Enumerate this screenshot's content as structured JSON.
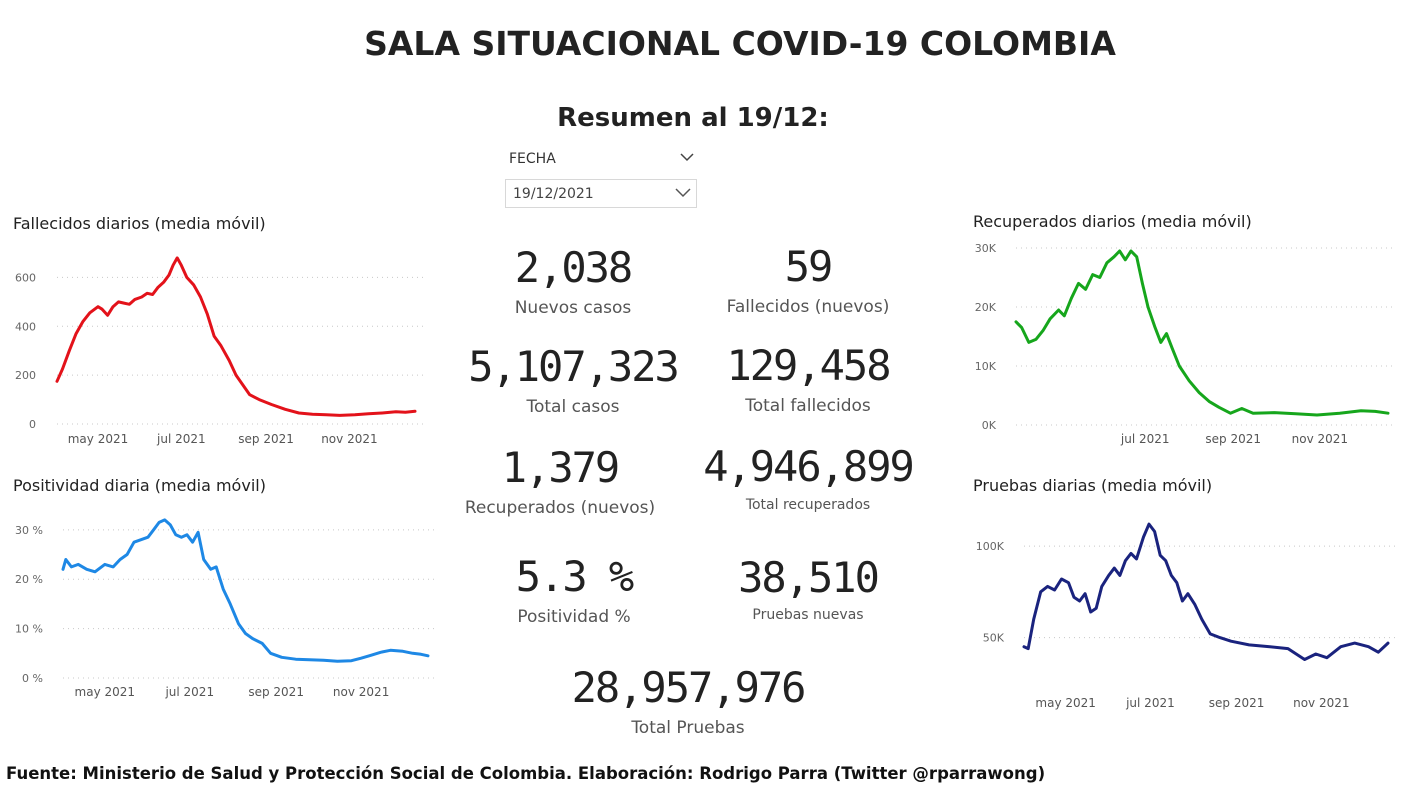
{
  "title": "SALA SITUACIONAL COVID-19 COLOMBIA",
  "subtitle": "Resumen al 19/12:",
  "filter": {
    "label": "FECHA",
    "value": "19/12/2021"
  },
  "kpis": {
    "nuevos_casos": {
      "value": "2,038",
      "label": "Nuevos casos"
    },
    "fallecidos_nuevos": {
      "value": "59",
      "label": "Fallecidos (nuevos)"
    },
    "total_casos": {
      "value": "5,107,323",
      "label": "Total casos"
    },
    "total_fallecidos": {
      "value": "129,458",
      "label": "Total fallecidos"
    },
    "recuperados_nuevos": {
      "value": "1,379",
      "label": "Recuperados (nuevos)"
    },
    "total_recuperados": {
      "value": "4,946,899",
      "label": "Total recuperados"
    },
    "positividad": {
      "value": "5.3 %",
      "label": "Positividad %"
    },
    "pruebas_nuevas": {
      "value": "38,510",
      "label": "Pruebas nuevas"
    },
    "total_pruebas": {
      "value": "28,957,976",
      "label": "Total Pruebas"
    }
  },
  "footer": "Fuente: Ministerio de Salud y Protección Social de Colombia. Elaboración: Rodrigo Parra (Twitter @rparrawong)",
  "chart_data": [
    {
      "id": "fallecidos",
      "type": "line",
      "title": "Fallecidos diarios (media móvil)",
      "color": "#e3121a",
      "xrange": [
        "2021-04-01",
        "2021-12-19"
      ],
      "ylim": [
        0,
        700
      ],
      "yticks": [
        {
          "v": 0,
          "label": "0"
        },
        {
          "v": 200,
          "label": "200"
        },
        {
          "v": 400,
          "label": "400"
        },
        {
          "v": 600,
          "label": "600"
        }
      ],
      "xticks": [
        {
          "d": "2021-05-01",
          "label": "may 2021"
        },
        {
          "d": "2021-07-01",
          "label": "jul 2021"
        },
        {
          "d": "2021-09-01",
          "label": "sep 2021"
        },
        {
          "d": "2021-11-01",
          "label": "nov 2021"
        }
      ],
      "grid": true,
      "series": [
        {
          "points": [
            [
              "2021-04-01",
              175
            ],
            [
              "2021-04-05",
              225
            ],
            [
              "2021-04-10",
              300
            ],
            [
              "2021-04-15",
              370
            ],
            [
              "2021-04-20",
              420
            ],
            [
              "2021-04-25",
              455
            ],
            [
              "2021-05-01",
              480
            ],
            [
              "2021-05-04",
              470
            ],
            [
              "2021-05-08",
              445
            ],
            [
              "2021-05-12",
              480
            ],
            [
              "2021-05-16",
              500
            ],
            [
              "2021-05-20",
              495
            ],
            [
              "2021-05-24",
              490
            ],
            [
              "2021-05-28",
              510
            ],
            [
              "2021-06-02",
              520
            ],
            [
              "2021-06-06",
              535
            ],
            [
              "2021-06-10",
              530
            ],
            [
              "2021-06-14",
              560
            ],
            [
              "2021-06-18",
              580
            ],
            [
              "2021-06-22",
              610
            ],
            [
              "2021-06-25",
              650
            ],
            [
              "2021-06-28",
              680
            ],
            [
              "2021-07-01",
              650
            ],
            [
              "2021-07-05",
              600
            ],
            [
              "2021-07-10",
              570
            ],
            [
              "2021-07-15",
              520
            ],
            [
              "2021-07-20",
              450
            ],
            [
              "2021-07-25",
              360
            ],
            [
              "2021-07-30",
              320
            ],
            [
              "2021-08-05",
              260
            ],
            [
              "2021-08-10",
              200
            ],
            [
              "2021-08-15",
              160
            ],
            [
              "2021-08-20",
              120
            ],
            [
              "2021-08-27",
              100
            ],
            [
              "2021-09-05",
              80
            ],
            [
              "2021-09-15",
              60
            ],
            [
              "2021-09-25",
              45
            ],
            [
              "2021-10-05",
              40
            ],
            [
              "2021-10-15",
              38
            ],
            [
              "2021-10-25",
              35
            ],
            [
              "2021-11-05",
              38
            ],
            [
              "2021-11-15",
              42
            ],
            [
              "2021-11-25",
              45
            ],
            [
              "2021-12-05",
              50
            ],
            [
              "2021-12-12",
              48
            ],
            [
              "2021-12-19",
              52
            ]
          ]
        }
      ]
    },
    {
      "id": "positividad",
      "type": "line",
      "title": "Positividad diaria (media móvil)",
      "color": "#1e88e5",
      "xrange": [
        "2021-04-01",
        "2021-12-19"
      ],
      "ylim": [
        0,
        33
      ],
      "yticks": [
        {
          "v": 0,
          "label": "0 %"
        },
        {
          "v": 10,
          "label": "10 %"
        },
        {
          "v": 20,
          "label": "20 %"
        },
        {
          "v": 30,
          "label": "30 %"
        }
      ],
      "xticks": [
        {
          "d": "2021-05-01",
          "label": "may 2021"
        },
        {
          "d": "2021-07-01",
          "label": "jul 2021"
        },
        {
          "d": "2021-09-01",
          "label": "sep 2021"
        },
        {
          "d": "2021-11-01",
          "label": "nov 2021"
        }
      ],
      "grid": true,
      "series": [
        {
          "points": [
            [
              "2021-04-01",
              22
            ],
            [
              "2021-04-03",
              24
            ],
            [
              "2021-04-07",
              22.5
            ],
            [
              "2021-04-12",
              23
            ],
            [
              "2021-04-18",
              22
            ],
            [
              "2021-04-24",
              21.5
            ],
            [
              "2021-05-01",
              23
            ],
            [
              "2021-05-07",
              22.5
            ],
            [
              "2021-05-12",
              24
            ],
            [
              "2021-05-17",
              25
            ],
            [
              "2021-05-22",
              27.5
            ],
            [
              "2021-05-27",
              28
            ],
            [
              "2021-06-01",
              28.5
            ],
            [
              "2021-06-05",
              30
            ],
            [
              "2021-06-09",
              31.5
            ],
            [
              "2021-06-13",
              32
            ],
            [
              "2021-06-17",
              31
            ],
            [
              "2021-06-21",
              29
            ],
            [
              "2021-06-25",
              28.5
            ],
            [
              "2021-06-29",
              29
            ],
            [
              "2021-07-03",
              27.5
            ],
            [
              "2021-07-07",
              29.5
            ],
            [
              "2021-07-11",
              24
            ],
            [
              "2021-07-16",
              22
            ],
            [
              "2021-07-20",
              22.5
            ],
            [
              "2021-07-25",
              18
            ],
            [
              "2021-07-30",
              15
            ],
            [
              "2021-08-05",
              11
            ],
            [
              "2021-08-10",
              9
            ],
            [
              "2021-08-15",
              8
            ],
            [
              "2021-08-22",
              7
            ],
            [
              "2021-08-28",
              5
            ],
            [
              "2021-09-05",
              4.2
            ],
            [
              "2021-09-15",
              3.8
            ],
            [
              "2021-09-25",
              3.7
            ],
            [
              "2021-10-05",
              3.6
            ],
            [
              "2021-10-15",
              3.4
            ],
            [
              "2021-10-25",
              3.5
            ],
            [
              "2021-11-01",
              4
            ],
            [
              "2021-11-08",
              4.6
            ],
            [
              "2021-11-15",
              5.2
            ],
            [
              "2021-11-22",
              5.6
            ],
            [
              "2021-12-01",
              5.4
            ],
            [
              "2021-12-08",
              5.0
            ],
            [
              "2021-12-14",
              4.8
            ],
            [
              "2021-12-19",
              4.5
            ]
          ]
        }
      ]
    },
    {
      "id": "recuperados",
      "type": "line",
      "title": "Recuperados diarios (media móvil)",
      "color": "#16a61c",
      "xrange": [
        "2021-04-01",
        "2021-12-19"
      ],
      "ylim": [
        0,
        30000
      ],
      "yticks": [
        {
          "v": 0,
          "label": "0K"
        },
        {
          "v": 10000,
          "label": "10K"
        },
        {
          "v": 20000,
          "label": "20K"
        },
        {
          "v": 30000,
          "label": "30K"
        }
      ],
      "xticks": [
        {
          "d": "2021-07-01",
          "label": "jul 2021"
        },
        {
          "d": "2021-09-01",
          "label": "sep 2021"
        },
        {
          "d": "2021-11-01",
          "label": "nov 2021"
        }
      ],
      "grid": true,
      "series": [
        {
          "points": [
            [
              "2021-04-01",
              17500
            ],
            [
              "2021-04-05",
              16500
            ],
            [
              "2021-04-10",
              14000
            ],
            [
              "2021-04-15",
              14500
            ],
            [
              "2021-04-20",
              16000
            ],
            [
              "2021-04-25",
              18000
            ],
            [
              "2021-05-01",
              19500
            ],
            [
              "2021-05-05",
              18500
            ],
            [
              "2021-05-10",
              21500
            ],
            [
              "2021-05-15",
              24000
            ],
            [
              "2021-05-20",
              23000
            ],
            [
              "2021-05-25",
              25500
            ],
            [
              "2021-05-30",
              25000
            ],
            [
              "2021-06-04",
              27500
            ],
            [
              "2021-06-09",
              28500
            ],
            [
              "2021-06-13",
              29500
            ],
            [
              "2021-06-17",
              28000
            ],
            [
              "2021-06-21",
              29500
            ],
            [
              "2021-06-25",
              28500
            ],
            [
              "2021-06-29",
              24000
            ],
            [
              "2021-07-03",
              20000
            ],
            [
              "2021-07-08",
              16500
            ],
            [
              "2021-07-12",
              14000
            ],
            [
              "2021-07-16",
              15500
            ],
            [
              "2021-07-20",
              13000
            ],
            [
              "2021-07-25",
              10000
            ],
            [
              "2021-08-01",
              7500
            ],
            [
              "2021-08-08",
              5500
            ],
            [
              "2021-08-15",
              4000
            ],
            [
              "2021-08-22",
              3000
            ],
            [
              "2021-08-30",
              2000
            ],
            [
              "2021-09-07",
              2800
            ],
            [
              "2021-09-15",
              2000
            ],
            [
              "2021-09-30",
              2100
            ],
            [
              "2021-10-15",
              1900
            ],
            [
              "2021-10-30",
              1700
            ],
            [
              "2021-11-15",
              2000
            ],
            [
              "2021-11-30",
              2400
            ],
            [
              "2021-12-10",
              2300
            ],
            [
              "2021-12-19",
              2000
            ]
          ]
        }
      ]
    },
    {
      "id": "pruebas",
      "type": "line",
      "title": "Pruebas diarias (media móvil)",
      "color": "#1a237e",
      "xrange": [
        "2021-04-01",
        "2021-12-19"
      ],
      "ylim": [
        30000,
        115000
      ],
      "yticks": [
        {
          "v": 50000,
          "label": "50K"
        },
        {
          "v": 100000,
          "label": "100K"
        }
      ],
      "xticks": [
        {
          "d": "2021-05-01",
          "label": "may 2021"
        },
        {
          "d": "2021-07-01",
          "label": "jul 2021"
        },
        {
          "d": "2021-09-01",
          "label": "sep 2021"
        },
        {
          "d": "2021-11-01",
          "label": "nov 2021"
        }
      ],
      "grid": true,
      "series": [
        {
          "points": [
            [
              "2021-04-01",
              45000
            ],
            [
              "2021-04-04",
              44000
            ],
            [
              "2021-04-08",
              60000
            ],
            [
              "2021-04-13",
              75000
            ],
            [
              "2021-04-18",
              78000
            ],
            [
              "2021-04-23",
              76000
            ],
            [
              "2021-04-28",
              82000
            ],
            [
              "2021-05-03",
              80000
            ],
            [
              "2021-05-07",
              72000
            ],
            [
              "2021-05-11",
              70000
            ],
            [
              "2021-05-15",
              74000
            ],
            [
              "2021-05-19",
              64000
            ],
            [
              "2021-05-23",
              66000
            ],
            [
              "2021-05-27",
              78000
            ],
            [
              "2021-06-01",
              84000
            ],
            [
              "2021-06-05",
              88000
            ],
            [
              "2021-06-09",
              84000
            ],
            [
              "2021-06-13",
              92000
            ],
            [
              "2021-06-17",
              96000
            ],
            [
              "2021-06-21",
              93000
            ],
            [
              "2021-06-26",
              105000
            ],
            [
              "2021-06-30",
              112000
            ],
            [
              "2021-07-04",
              108000
            ],
            [
              "2021-07-08",
              95000
            ],
            [
              "2021-07-12",
              92000
            ],
            [
              "2021-07-16",
              84000
            ],
            [
              "2021-07-20",
              80000
            ],
            [
              "2021-07-24",
              70000
            ],
            [
              "2021-07-28",
              74000
            ],
            [
              "2021-08-02",
              68000
            ],
            [
              "2021-08-07",
              60000
            ],
            [
              "2021-08-13",
              52000
            ],
            [
              "2021-08-20",
              50000
            ],
            [
              "2021-08-28",
              48000
            ],
            [
              "2021-09-10",
              46000
            ],
            [
              "2021-09-25",
              45000
            ],
            [
              "2021-10-08",
              44000
            ],
            [
              "2021-10-20",
              38000
            ],
            [
              "2021-10-28",
              41000
            ],
            [
              "2021-11-05",
              39000
            ],
            [
              "2021-11-15",
              45000
            ],
            [
              "2021-11-25",
              47000
            ],
            [
              "2021-12-05",
              45000
            ],
            [
              "2021-12-12",
              42000
            ],
            [
              "2021-12-19",
              47000
            ]
          ]
        }
      ]
    }
  ]
}
